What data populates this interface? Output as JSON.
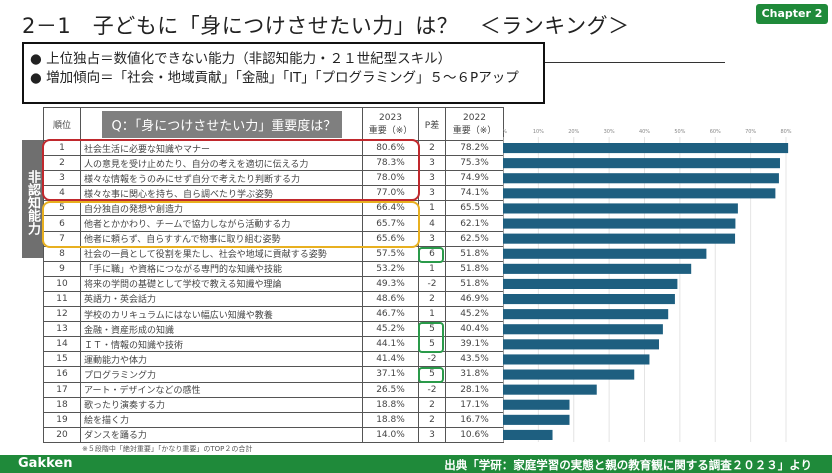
{
  "title": "2－1　子どもに「身につけさせたい力」は？　＜ランキング＞",
  "chapter": "Chapter 2",
  "summary": [
    "● 上位独占＝数値化できない能力（非認知能力・２１世紀型スキル）",
    "● 増加傾向＝「社会・地域貢献」「金融」「IT」「プログラミング」５～６Pアップ"
  ],
  "side_label": "非認知能力",
  "note": "※５段階中「絶対重要」「かなり重要」のTOP２の合計",
  "footer": {
    "logo": "Gakken",
    "source": "出典「学研：家庭学習の実態と親の教育観に関する調査２０２３」より"
  },
  "colors": {
    "bar": "#1e5f80",
    "accent_green": "#1f8a3a",
    "highlight_red": "#c0282d",
    "highlight_yellow": "#e8b020"
  },
  "chart_data": {
    "type": "table",
    "headers": {
      "rank": "順位",
      "question": "Q：「身につけさせたい力」重要度は？",
      "y2023": "2023",
      "y2023_sub": "重要（※）",
      "diff": "P差",
      "y2022": "2022",
      "y2022_sub": "重要（※）"
    },
    "xlim": [
      0,
      80
    ],
    "x_ticks": [
      "0%",
      "10%",
      "20%",
      "30%",
      "40%",
      "50%",
      "60%",
      "70%",
      "80%"
    ],
    "bar_series": "2023",
    "rows": [
      {
        "rank": "1",
        "label": "社会生活に必要な知識やマナー",
        "v2023": 80.6,
        "t2023": "80.6%",
        "diff": "2",
        "t2022": "78.2%"
      },
      {
        "rank": "2",
        "label": "人の意見を受け止めたり、自分の考えを適切に伝える力",
        "v2023": 78.3,
        "t2023": "78.3%",
        "diff": "3",
        "t2022": "75.3%"
      },
      {
        "rank": "3",
        "label": "様々な情報をうのみにせず自分で考えたり判断する力",
        "v2023": 78.0,
        "t2023": "78.0%",
        "diff": "3",
        "t2022": "74.9%"
      },
      {
        "rank": "4",
        "label": "様々な事に関心を持ち、自ら調べたり学ぶ姿勢",
        "v2023": 77.0,
        "t2023": "77.0%",
        "diff": "3",
        "t2022": "74.1%"
      },
      {
        "rank": "5",
        "label": "自分独自の発想や創造力",
        "v2023": 66.4,
        "t2023": "66.4%",
        "diff": "1",
        "t2022": "65.5%"
      },
      {
        "rank": "6",
        "label": "他者とかかわり、チームで協力しながら活動する力",
        "v2023": 65.7,
        "t2023": "65.7%",
        "diff": "4",
        "t2022": "62.1%"
      },
      {
        "rank": "7",
        "label": "他者に頼らず、自らすすんで物事に取り組む姿勢",
        "v2023": 65.6,
        "t2023": "65.6%",
        "diff": "3",
        "t2022": "62.5%"
      },
      {
        "rank": "8",
        "label": "社会の一員として役割を果たし、社会や地域に貢献する姿勢",
        "v2023": 57.5,
        "t2023": "57.5%",
        "diff": "6",
        "t2022": "51.8%"
      },
      {
        "rank": "9",
        "label": "「手に職」や資格につながる専門的な知識や技能",
        "v2023": 53.2,
        "t2023": "53.2%",
        "diff": "1",
        "t2022": "51.8%"
      },
      {
        "rank": "10",
        "label": "将来の学問の基礎として学校で教える知識や理論",
        "v2023": 49.3,
        "t2023": "49.3%",
        "diff": "-2",
        "t2022": "51.8%"
      },
      {
        "rank": "11",
        "label": "英語力・英会話力",
        "v2023": 48.6,
        "t2023": "48.6%",
        "diff": "2",
        "t2022": "46.9%"
      },
      {
        "rank": "12",
        "label": "学校のカリキュラムにはない幅広い知識や教養",
        "v2023": 46.7,
        "t2023": "46.7%",
        "diff": "1",
        "t2022": "45.2%"
      },
      {
        "rank": "13",
        "label": "金融・資産形成の知識",
        "v2023": 45.2,
        "t2023": "45.2%",
        "diff": "5",
        "t2022": "40.4%"
      },
      {
        "rank": "14",
        "label": "ＩＴ・情報の知識や技術",
        "v2023": 44.1,
        "t2023": "44.1%",
        "diff": "5",
        "t2022": "39.1%"
      },
      {
        "rank": "15",
        "label": "運動能力や体力",
        "v2023": 41.4,
        "t2023": "41.4%",
        "diff": "-2",
        "t2022": "43.5%"
      },
      {
        "rank": "16",
        "label": "プログラミング力",
        "v2023": 37.1,
        "t2023": "37.1%",
        "diff": "5",
        "t2022": "31.8%"
      },
      {
        "rank": "17",
        "label": "アート・デザインなどの感性",
        "v2023": 26.5,
        "t2023": "26.5%",
        "diff": "-2",
        "t2022": "28.1%"
      },
      {
        "rank": "18",
        "label": "歌ったり演奏する力",
        "v2023": 18.8,
        "t2023": "18.8%",
        "diff": "2",
        "t2022": "17.1%"
      },
      {
        "rank": "19",
        "label": "絵を描く力",
        "v2023": 18.8,
        "t2023": "18.8%",
        "diff": "2",
        "t2022": "16.7%"
      },
      {
        "rank": "20",
        "label": "ダンスを踊る力",
        "v2023": 14.0,
        "t2023": "14.0%",
        "diff": "3",
        "t2022": "10.6%"
      }
    ]
  }
}
